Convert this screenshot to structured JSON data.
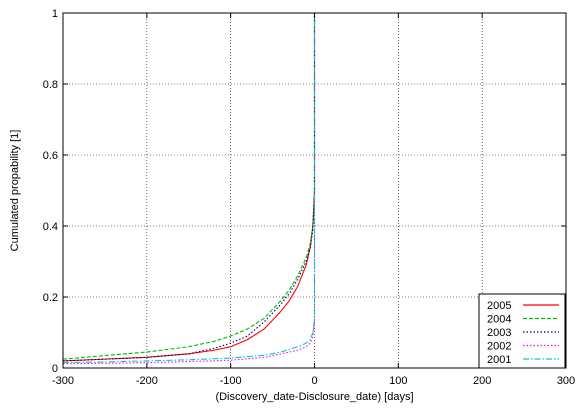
{
  "chart_data": {
    "type": "line",
    "title": "",
    "xlabel": "(Discovery_date-Disclosure_date) [days]",
    "ylabel": "Cumulated propability [1]",
    "xlim": [
      -300,
      300
    ],
    "ylim": [
      0,
      1
    ],
    "xticks": [
      -300,
      -200,
      -100,
      0,
      100,
      200,
      300
    ],
    "yticks": [
      0,
      0.2,
      0.4,
      0.6,
      0.8,
      1
    ],
    "xtick_labels": [
      "-300",
      "-200",
      "-100",
      "0",
      "100",
      "200",
      "300"
    ],
    "ytick_labels": [
      "0",
      "0.2",
      "0.4",
      "0.6",
      "0.8",
      "1"
    ],
    "grid": true,
    "legend_position": "bottom-right",
    "series": [
      {
        "name": "2005",
        "color": "#ff0000",
        "dash": "solid",
        "x": [
          -300,
          -250,
          -200,
          -150,
          -120,
          -100,
          -80,
          -60,
          -40,
          -30,
          -20,
          -10,
          -5,
          -2,
          -1,
          0,
          0
        ],
        "y": [
          0.02,
          0.025,
          0.03,
          0.04,
          0.05,
          0.06,
          0.08,
          0.11,
          0.16,
          0.19,
          0.23,
          0.29,
          0.34,
          0.4,
          0.45,
          0.5,
          1.0
        ]
      },
      {
        "name": "2004",
        "color": "#00bb00",
        "dash": "dashed",
        "x": [
          -300,
          -250,
          -200,
          -150,
          -120,
          -100,
          -80,
          -60,
          -40,
          -30,
          -20,
          -10,
          -5,
          -2,
          -1,
          0,
          0
        ],
        "y": [
          0.025,
          0.035,
          0.045,
          0.06,
          0.075,
          0.09,
          0.11,
          0.14,
          0.19,
          0.22,
          0.26,
          0.31,
          0.35,
          0.4,
          0.44,
          0.48,
          1.0
        ]
      },
      {
        "name": "2003",
        "color": "#000066",
        "dash": "dotted",
        "x": [
          -300,
          -250,
          -200,
          -150,
          -120,
          -100,
          -80,
          -60,
          -40,
          -30,
          -20,
          -10,
          -5,
          -2,
          -1,
          0,
          0
        ],
        "y": [
          0.02,
          0.025,
          0.03,
          0.04,
          0.055,
          0.07,
          0.09,
          0.13,
          0.18,
          0.21,
          0.25,
          0.3,
          0.34,
          0.39,
          0.44,
          0.5,
          1.0
        ]
      },
      {
        "name": "2002",
        "color": "#ff00ff",
        "dash": "dotted",
        "x": [
          -300,
          -250,
          -200,
          -150,
          -100,
          -60,
          -40,
          -20,
          -10,
          -5,
          -2,
          0,
          0
        ],
        "y": [
          0.012,
          0.013,
          0.015,
          0.018,
          0.022,
          0.03,
          0.04,
          0.05,
          0.06,
          0.07,
          0.09,
          0.13,
          1.0
        ]
      },
      {
        "name": "2001",
        "color": "#00cccc",
        "dash": "dashdot",
        "x": [
          -300,
          -250,
          -200,
          -150,
          -100,
          -60,
          -40,
          -20,
          -10,
          -5,
          -2,
          0,
          0
        ],
        "y": [
          0.015,
          0.017,
          0.02,
          0.023,
          0.028,
          0.036,
          0.045,
          0.06,
          0.07,
          0.08,
          0.1,
          0.14,
          1.0
        ]
      }
    ]
  }
}
